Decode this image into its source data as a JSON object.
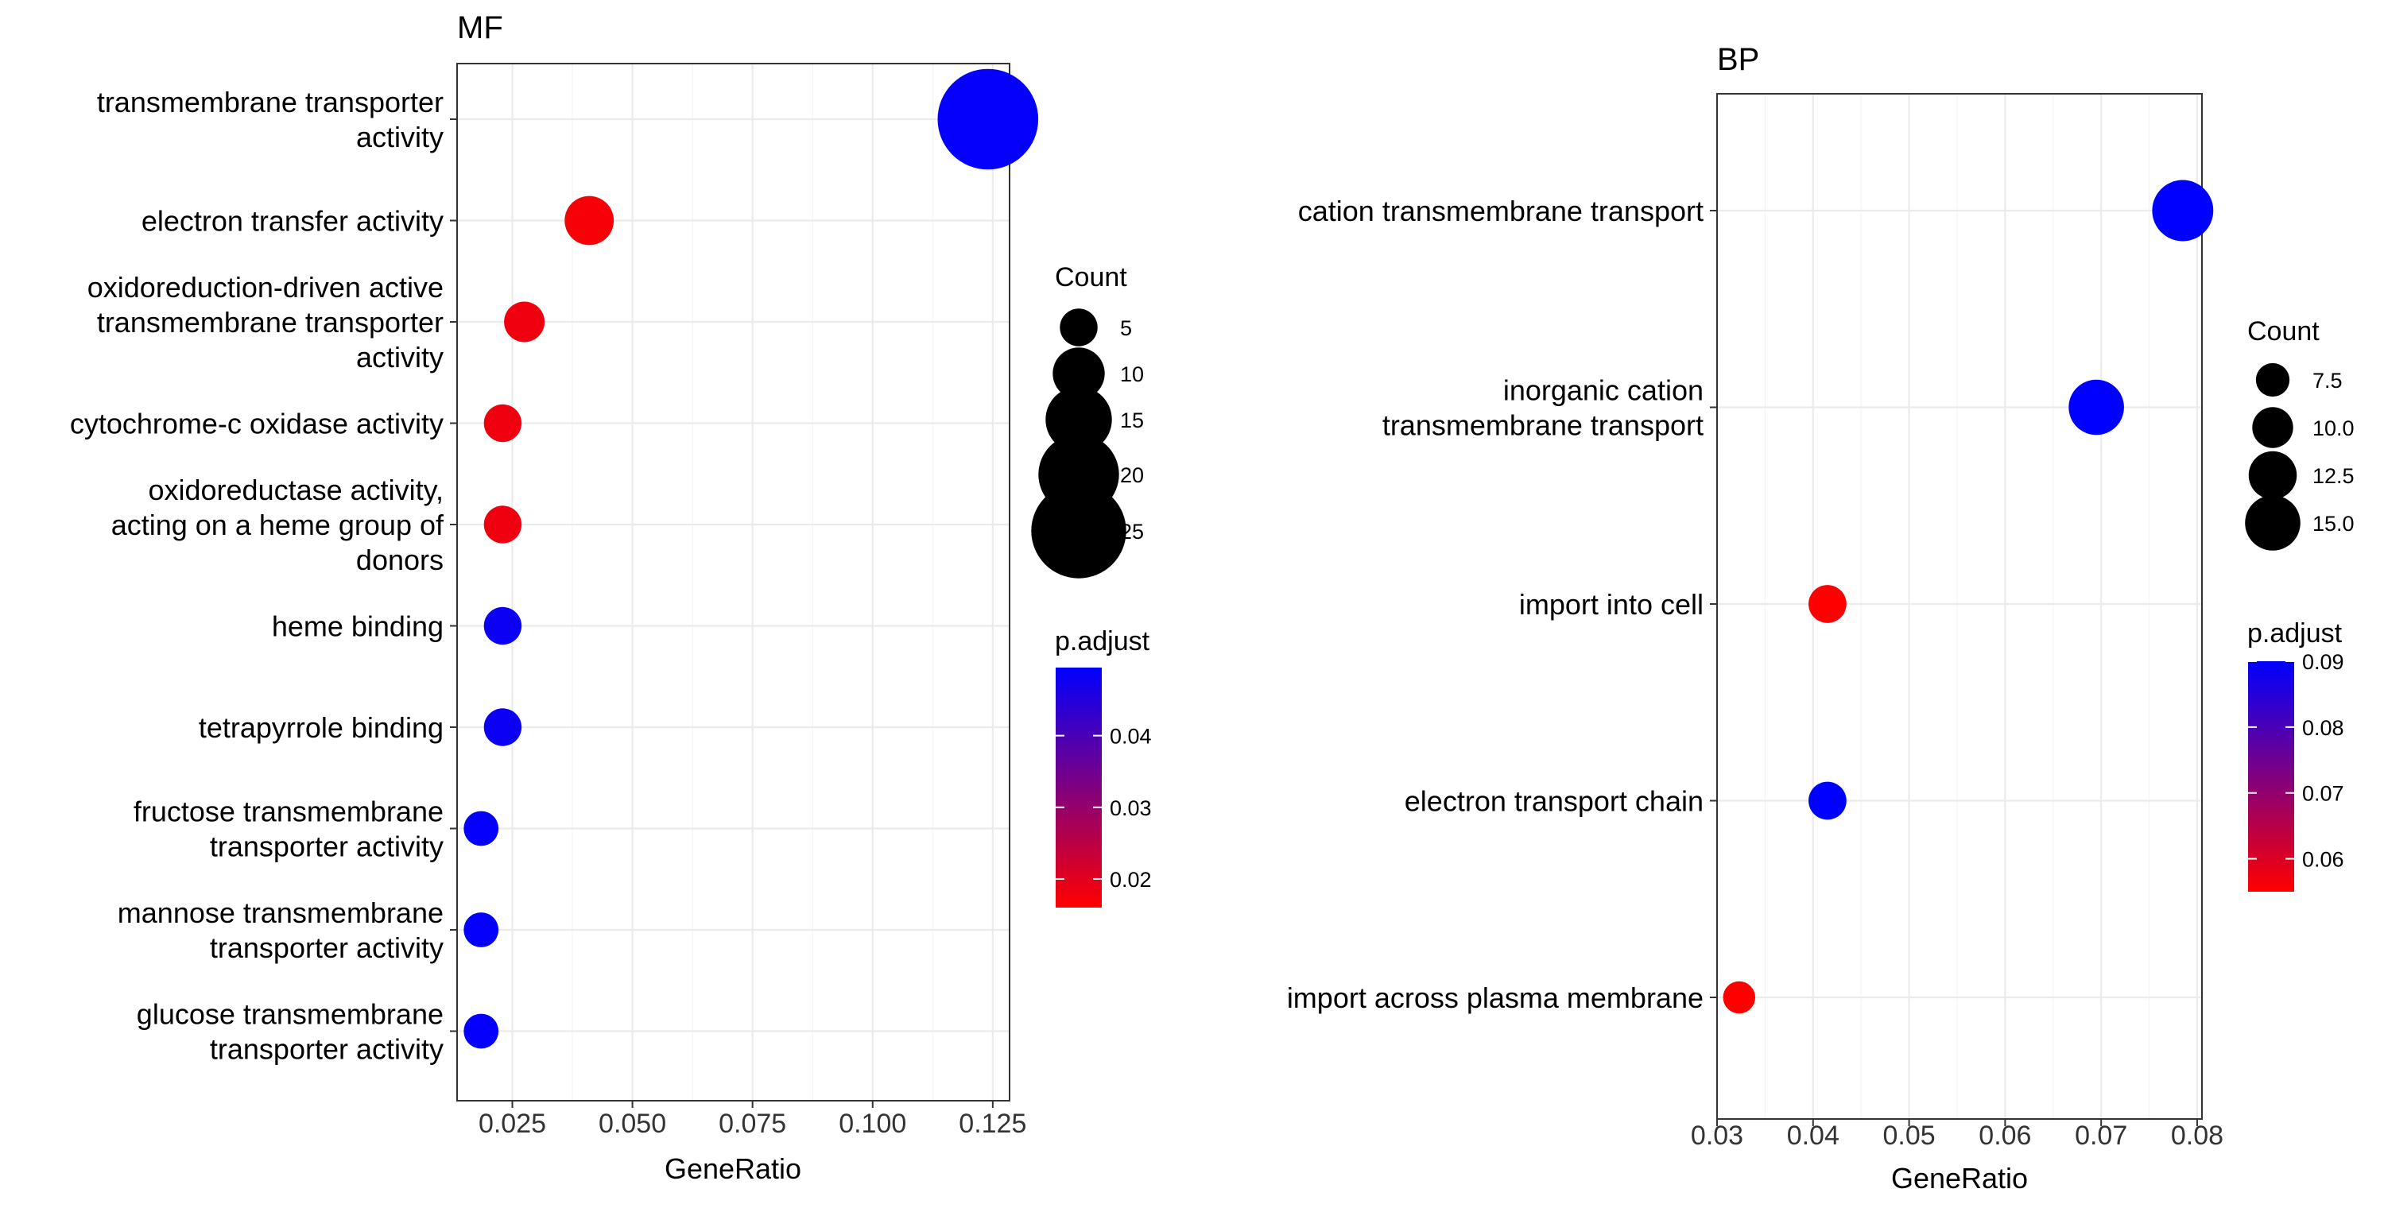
{
  "chart_data": [
    {
      "type": "scatter",
      "title": "MF",
      "xlabel": "GeneRatio",
      "ylabel": "",
      "xlim": [
        0.0135,
        0.1285
      ],
      "xticks": [
        0.025,
        0.05,
        0.075,
        0.1,
        0.125
      ],
      "xtick_labels": [
        "0.025",
        "0.050",
        "0.075",
        "0.100",
        "0.125"
      ],
      "grid": true,
      "legend_position": "right",
      "categories": [
        [
          "transmembrane transporter",
          "activity"
        ],
        [
          "electron transfer activity"
        ],
        [
          "oxidoreduction-driven active",
          "transmembrane transporter",
          "activity"
        ],
        [
          "cytochrome-c oxidase activity"
        ],
        [
          "oxidoreductase activity,",
          "acting on a heme group of",
          "donors"
        ],
        [
          "heme binding"
        ],
        [
          "tetrapyrrole binding"
        ],
        [
          "fructose transmembrane",
          "transporter activity"
        ],
        [
          "mannose transmembrane",
          "transporter activity"
        ],
        [
          "glucose transmembrane",
          "transporter activity"
        ]
      ],
      "gene_ratio": [
        0.124,
        0.041,
        0.0275,
        0.023,
        0.023,
        0.023,
        0.023,
        0.0185,
        0.0185,
        0.0185
      ],
      "count": [
        27,
        9,
        6,
        5,
        5,
        5,
        5,
        4,
        4,
        4
      ],
      "p_adjust": [
        0.049,
        0.017,
        0.018,
        0.018,
        0.018,
        0.048,
        0.048,
        0.049,
        0.049,
        0.049
      ],
      "size_legend": {
        "title": "Count",
        "values": [
          5,
          10,
          15,
          20,
          25
        ],
        "labels": [
          "5",
          "10",
          "15",
          "20",
          "25"
        ]
      },
      "color_legend": {
        "title": "p.adjust",
        "range": [
          0.016,
          0.0495
        ],
        "ticks": [
          0.02,
          0.03,
          0.04
        ],
        "tick_labels": [
          "0.02",
          "0.03",
          "0.04"
        ],
        "low_color": "#ff0000",
        "high_color": "#0000ff"
      }
    },
    {
      "type": "scatter",
      "title": "BP",
      "xlabel": "GeneRatio",
      "ylabel": "",
      "xlim": [
        0.03,
        0.0805
      ],
      "xticks": [
        0.03,
        0.04,
        0.05,
        0.06,
        0.07,
        0.08
      ],
      "xtick_labels": [
        "0.03",
        "0.04",
        "0.05",
        "0.06",
        "0.07",
        "0.08"
      ],
      "grid": true,
      "legend_position": "right",
      "categories": [
        [
          "cation transmembrane transport"
        ],
        [
          "inorganic cation",
          "transmembrane transport"
        ],
        [
          "import into cell"
        ],
        [
          "electron transport chain"
        ],
        [
          "import across plasma membrane"
        ]
      ],
      "gene_ratio": [
        0.0785,
        0.0695,
        0.0415,
        0.0415,
        0.0323
      ],
      "count": [
        17,
        15,
        9,
        9,
        7
      ],
      "p_adjust": [
        0.09,
        0.09,
        0.055,
        0.09,
        0.055
      ],
      "size_legend": {
        "title": "Count",
        "values": [
          7.5,
          10,
          12.5,
          15
        ],
        "labels": [
          "7.5",
          "10.0",
          "12.5",
          "15.0"
        ]
      },
      "color_legend": {
        "title": "p.adjust",
        "range": [
          0.055,
          0.09
        ],
        "ticks": [
          0.06,
          0.07,
          0.08,
          0.09
        ],
        "tick_labels": [
          "0.06",
          "0.07",
          "0.08",
          "0.09"
        ],
        "low_color": "#ff0000",
        "high_color": "#0000ff"
      }
    }
  ]
}
